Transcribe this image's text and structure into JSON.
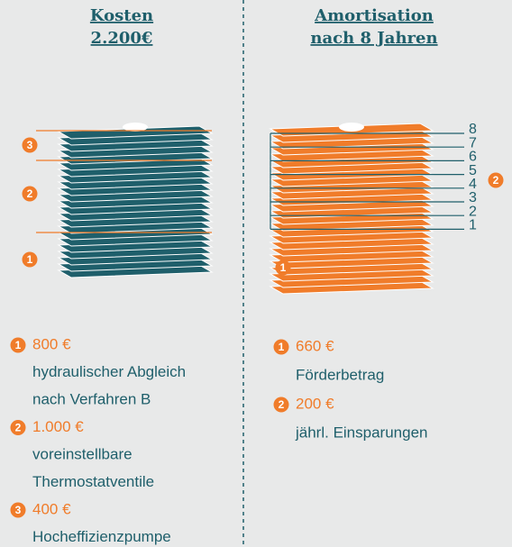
{
  "columns": [
    {
      "title": [
        "Kosten",
        "2.200€"
      ],
      "stack_markers": [
        "3",
        "2",
        "1"
      ],
      "items": [
        {
          "number": "1",
          "amount": "800 €",
          "description": [
            "hydraulischer Abgleich",
            "nach Verfahren B"
          ]
        },
        {
          "number": "2",
          "amount": "1.000 €",
          "description": [
            "voreinstellbare",
            "Thermostatventile"
          ]
        },
        {
          "number": "3",
          "amount": "400 €",
          "description": [
            "Hocheffizienzpumpe"
          ]
        }
      ]
    },
    {
      "title": [
        "Amortisation",
        "nach 8 Jahren"
      ],
      "stack_markers": [
        "1",
        "2"
      ],
      "scale": [
        "8",
        "7",
        "6",
        "5",
        "4",
        "3",
        "2",
        "1"
      ],
      "items": [
        {
          "number": "1",
          "amount": "660 €",
          "description": [
            "Förderbetrag"
          ]
        },
        {
          "number": "2",
          "amount": "200 €",
          "description": [
            "jährl. Einsparungen"
          ]
        }
      ]
    }
  ]
}
